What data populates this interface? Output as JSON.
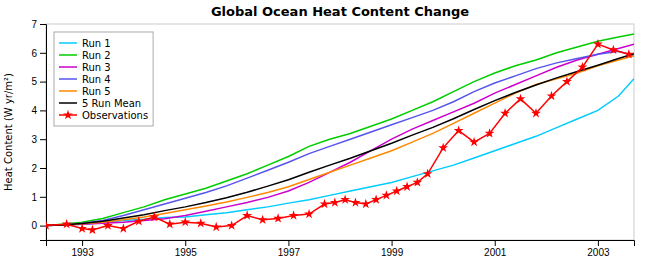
{
  "chart_data": {
    "type": "line",
    "title": "Global Ocean Heat Content Change",
    "ylabel": "Heat Content (W yr/m²)",
    "xlim": [
      1992.3,
      2003.7
    ],
    "ylim": [
      -0.5,
      7.0
    ],
    "xticks": [
      1993,
      1995,
      1997,
      1999,
      2001,
      2003
    ],
    "yticks": [
      0,
      1,
      2,
      3,
      4,
      5,
      6,
      7
    ],
    "grid": false,
    "legend": "upper left",
    "series": [
      {
        "name": "Run 1",
        "color": "#00ccff",
        "x": [
          1992.3,
          1992.6,
          1993.0,
          1993.4,
          1993.8,
          1994.2,
          1994.6,
          1995.0,
          1995.4,
          1995.8,
          1996.2,
          1996.6,
          1997.0,
          1997.4,
          1997.8,
          1998.2,
          1998.6,
          1999.0,
          1999.4,
          1999.8,
          2000.2,
          2000.6,
          2001.0,
          2001.4,
          2001.8,
          2002.2,
          2002.6,
          2003.0,
          2003.4,
          2003.7
        ],
        "values": [
          0.0,
          0.02,
          0.05,
          0.1,
          0.18,
          0.22,
          0.28,
          0.3,
          0.38,
          0.45,
          0.55,
          0.65,
          0.78,
          0.9,
          1.05,
          1.2,
          1.35,
          1.5,
          1.7,
          1.9,
          2.1,
          2.35,
          2.6,
          2.85,
          3.1,
          3.4,
          3.7,
          4.0,
          4.5,
          5.1
        ]
      },
      {
        "name": "Run 2",
        "color": "#00cc00",
        "x": [
          1992.3,
          1992.6,
          1993.0,
          1993.4,
          1993.8,
          1994.2,
          1994.6,
          1995.0,
          1995.4,
          1995.8,
          1996.2,
          1996.6,
          1997.0,
          1997.4,
          1997.8,
          1998.2,
          1998.6,
          1999.0,
          1999.4,
          1999.8,
          2000.2,
          2000.6,
          2001.0,
          2001.4,
          2001.8,
          2002.2,
          2002.6,
          2003.0,
          2003.4,
          2003.7
        ],
        "values": [
          0.0,
          0.05,
          0.12,
          0.25,
          0.45,
          0.65,
          0.9,
          1.1,
          1.3,
          1.55,
          1.8,
          2.1,
          2.4,
          2.75,
          3.0,
          3.2,
          3.45,
          3.7,
          4.0,
          4.3,
          4.65,
          5.0,
          5.3,
          5.55,
          5.75,
          6.0,
          6.2,
          6.4,
          6.55,
          6.65
        ]
      },
      {
        "name": "Run 3",
        "color": "#cc00cc",
        "x": [
          1992.3,
          1992.6,
          1993.0,
          1993.4,
          1993.8,
          1994.2,
          1994.6,
          1995.0,
          1995.4,
          1995.8,
          1996.2,
          1996.6,
          1997.0,
          1997.4,
          1997.8,
          1998.2,
          1998.6,
          1999.0,
          1999.4,
          1999.8,
          2000.2,
          2000.6,
          2001.0,
          2001.4,
          2001.8,
          2002.2,
          2002.6,
          2003.0,
          2003.4,
          2003.7
        ],
        "values": [
          0.0,
          0.02,
          0.05,
          0.08,
          0.12,
          0.18,
          0.24,
          0.35,
          0.5,
          0.65,
          0.8,
          0.98,
          1.2,
          1.5,
          1.85,
          2.2,
          2.6,
          3.0,
          3.35,
          3.65,
          3.95,
          4.25,
          4.6,
          4.9,
          5.2,
          5.5,
          5.75,
          5.95,
          6.15,
          6.3
        ]
      },
      {
        "name": "Run 4",
        "color": "#5555ee",
        "x": [
          1992.3,
          1992.6,
          1993.0,
          1993.4,
          1993.8,
          1994.2,
          1994.6,
          1995.0,
          1995.4,
          1995.8,
          1996.2,
          1996.6,
          1997.0,
          1997.4,
          1997.8,
          1998.2,
          1998.6,
          1999.0,
          1999.4,
          1999.8,
          2000.2,
          2000.6,
          2001.0,
          2001.4,
          2001.8,
          2002.2,
          2002.6,
          2003.0,
          2003.4,
          2003.7
        ],
        "values": [
          0.0,
          0.02,
          0.08,
          0.18,
          0.35,
          0.55,
          0.75,
          0.95,
          1.15,
          1.38,
          1.65,
          1.92,
          2.2,
          2.5,
          2.75,
          3.0,
          3.25,
          3.5,
          3.75,
          4.0,
          4.3,
          4.65,
          4.95,
          5.2,
          5.45,
          5.65,
          5.8,
          5.95,
          6.05,
          5.9
        ]
      },
      {
        "name": "Run 5",
        "color": "#ff8800",
        "x": [
          1992.3,
          1992.6,
          1993.0,
          1993.4,
          1993.8,
          1994.2,
          1994.6,
          1995.0,
          1995.4,
          1995.8,
          1996.2,
          1996.6,
          1997.0,
          1997.4,
          1997.8,
          1998.2,
          1998.6,
          1999.0,
          1999.4,
          1999.8,
          2000.2,
          2000.6,
          2001.0,
          2001.4,
          2001.8,
          2002.2,
          2002.6,
          2003.0,
          2003.4,
          2003.7
        ],
        "values": [
          0.0,
          0.02,
          0.06,
          0.12,
          0.2,
          0.3,
          0.42,
          0.55,
          0.68,
          0.82,
          0.98,
          1.15,
          1.35,
          1.6,
          1.85,
          2.1,
          2.35,
          2.6,
          2.9,
          3.2,
          3.55,
          3.9,
          4.25,
          4.6,
          4.9,
          5.1,
          5.3,
          5.55,
          5.75,
          5.9
        ]
      },
      {
        "name": "5 Run Mean",
        "color": "#000000",
        "x": [
          1992.3,
          1992.6,
          1993.0,
          1993.4,
          1993.8,
          1994.2,
          1994.6,
          1995.0,
          1995.4,
          1995.8,
          1996.2,
          1996.6,
          1997.0,
          1997.4,
          1997.8,
          1998.2,
          1998.6,
          1999.0,
          1999.4,
          1999.8,
          2000.2,
          2000.6,
          2001.0,
          2001.4,
          2001.8,
          2002.2,
          2002.6,
          2003.0,
          2003.4,
          2003.7
        ],
        "values": [
          0.0,
          0.02,
          0.07,
          0.15,
          0.26,
          0.38,
          0.52,
          0.65,
          0.8,
          0.97,
          1.16,
          1.37,
          1.59,
          1.85,
          2.1,
          2.34,
          2.6,
          2.86,
          3.14,
          3.41,
          3.71,
          4.03,
          4.34,
          4.62,
          4.88,
          5.13,
          5.35,
          5.57,
          5.8,
          5.97
        ]
      },
      {
        "name": "Observations",
        "color": "#ff0000",
        "marker": "star",
        "x": [
          1992.3,
          1992.7,
          1993.0,
          1993.2,
          1993.5,
          1993.8,
          1994.1,
          1994.4,
          1994.7,
          1995.0,
          1995.3,
          1995.6,
          1995.9,
          1996.2,
          1996.5,
          1996.8,
          1997.1,
          1997.4,
          1997.7,
          1997.9,
          1998.1,
          1998.3,
          1998.5,
          1998.7,
          1998.9,
          1999.1,
          1999.3,
          1999.5,
          1999.7,
          2000.0,
          2000.3,
          2000.6,
          2000.9,
          2001.2,
          2001.5,
          2001.8,
          2002.1,
          2002.4,
          2002.7,
          2003.0,
          2003.3,
          2003.6
        ],
        "values": [
          0.0,
          0.05,
          -0.1,
          -0.15,
          0.0,
          -0.1,
          0.15,
          0.3,
          0.05,
          0.12,
          0.08,
          -0.05,
          0.0,
          0.35,
          0.2,
          0.25,
          0.35,
          0.4,
          0.75,
          0.8,
          0.9,
          0.8,
          0.75,
          0.9,
          1.05,
          1.2,
          1.35,
          1.5,
          1.8,
          2.7,
          3.3,
          2.9,
          3.2,
          3.9,
          4.4,
          3.9,
          4.5,
          5.0,
          5.5,
          6.3,
          6.1,
          5.95
        ]
      }
    ]
  }
}
